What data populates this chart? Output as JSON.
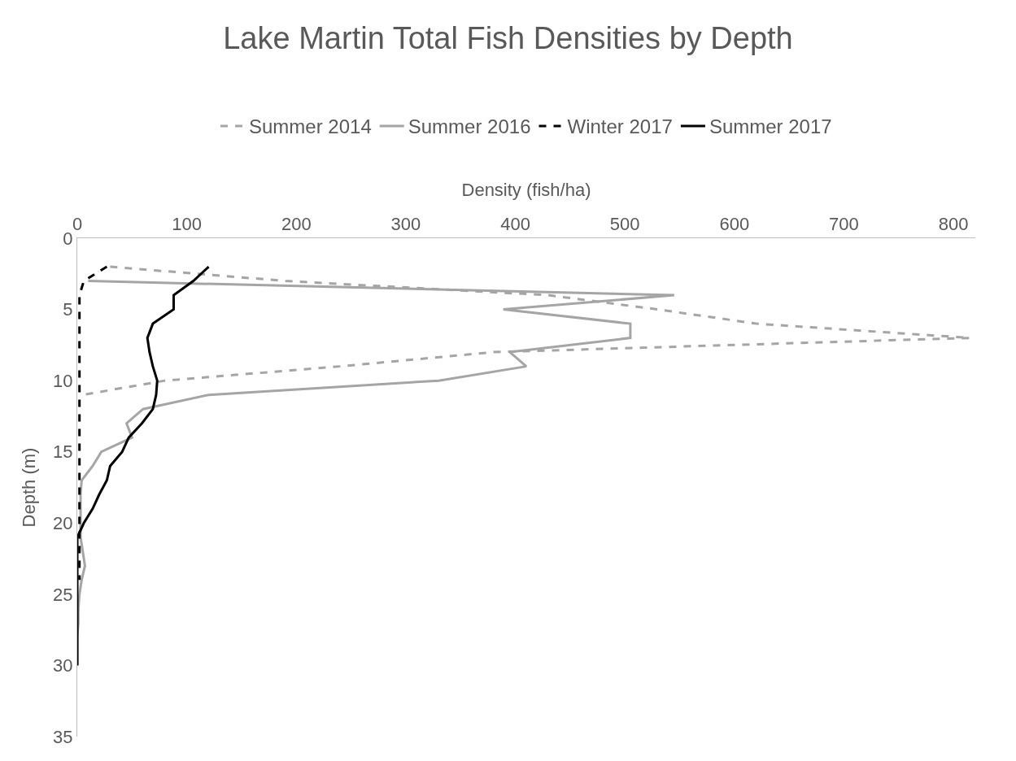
{
  "chart_data": {
    "type": "line",
    "title": "Lake Martin Total Fish Densities by Depth",
    "xlabel": "Density (fish/ha)",
    "ylabel": "Depth (m)",
    "xlim": [
      0,
      820
    ],
    "xticks": [
      0,
      100,
      200,
      300,
      400,
      500,
      600,
      700,
      800
    ],
    "ylim": [
      35,
      0
    ],
    "yticks": [
      0,
      5,
      10,
      15,
      20,
      25,
      30,
      35
    ],
    "legend": "top",
    "marker": "none",
    "series": [
      {
        "name": "Summer 2014",
        "color": "#a5a5a5",
        "line_style": "dashed",
        "x": [
          30,
          190,
          430,
          530,
          620,
          815,
          380,
          240,
          80,
          5
        ],
        "values": [
          2,
          3,
          4,
          5,
          6,
          7,
          8,
          9,
          10,
          11
        ]
      },
      {
        "name": "Summer 2016",
        "color": "#a5a5a5",
        "line_style": "solid",
        "x": [
          10,
          545,
          389,
          505,
          505,
          395,
          410,
          330,
          120,
          60,
          45,
          50,
          22,
          14,
          4,
          3,
          3,
          3,
          3,
          5,
          7,
          4,
          2,
          1,
          1,
          0,
          0,
          0
        ],
        "values": [
          3,
          4,
          5,
          6,
          7,
          8,
          9,
          10,
          11,
          12,
          13,
          14,
          15,
          16,
          17,
          18,
          19,
          20,
          21,
          22,
          23,
          24,
          25,
          26,
          27,
          28,
          29,
          30
        ]
      },
      {
        "name": "Winter 2017",
        "color": "#000000",
        "line_style": "dashed",
        "x": [
          27,
          6,
          2,
          2,
          2,
          2,
          2,
          2,
          2,
          2,
          2,
          2,
          2,
          2,
          2,
          2,
          2,
          2,
          2,
          2,
          2,
          2,
          2
        ],
        "values": [
          2,
          3,
          4,
          5,
          6,
          7,
          8,
          9,
          10,
          11,
          12,
          13,
          14,
          15,
          16,
          17,
          18,
          19,
          20,
          21,
          22,
          23,
          24
        ]
      },
      {
        "name": "Summer 2017",
        "color": "#000000",
        "line_style": "solid",
        "x": [
          120,
          106,
          88,
          88,
          69,
          64,
          66,
          69,
          73,
          72,
          69,
          59,
          47,
          41,
          30,
          27,
          20,
          14,
          6,
          0,
          0,
          0,
          0,
          0,
          0,
          0,
          0,
          0,
          0
        ],
        "values": [
          2,
          3,
          4,
          5,
          6,
          7,
          8,
          9,
          10,
          11,
          12,
          13,
          14,
          15,
          16,
          17,
          18,
          19,
          20,
          21,
          22,
          23,
          24,
          25,
          26,
          27,
          28,
          29,
          30
        ]
      }
    ]
  }
}
